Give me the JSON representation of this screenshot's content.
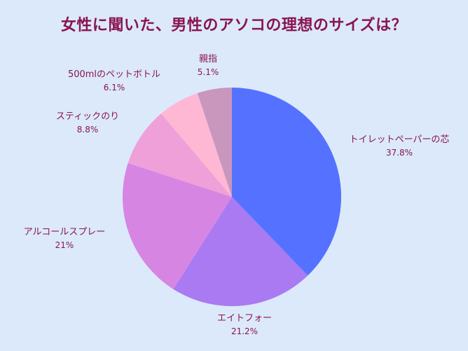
{
  "chart_data": {
    "type": "pie",
    "title": "女性に聞いた、男性のアソコの理想のサイズは？",
    "categories": [
      "トイレットペーパーの芯",
      "エイトフォー",
      "アルコールスプレー",
      "スティックのり",
      "500mlのペットボトル",
      "親指"
    ],
    "values": [
      37.8,
      21.2,
      21,
      8.8,
      6.1,
      5.1
    ],
    "value_labels": [
      "37.8%",
      "21.2%",
      "21%",
      "8.8%",
      "6.1%",
      "5.1%"
    ],
    "colors": [
      "#5472ff",
      "#a97af2",
      "#d785e3",
      "#efa0d9",
      "#ffb8d3",
      "#c996be"
    ],
    "legend": "none"
  }
}
